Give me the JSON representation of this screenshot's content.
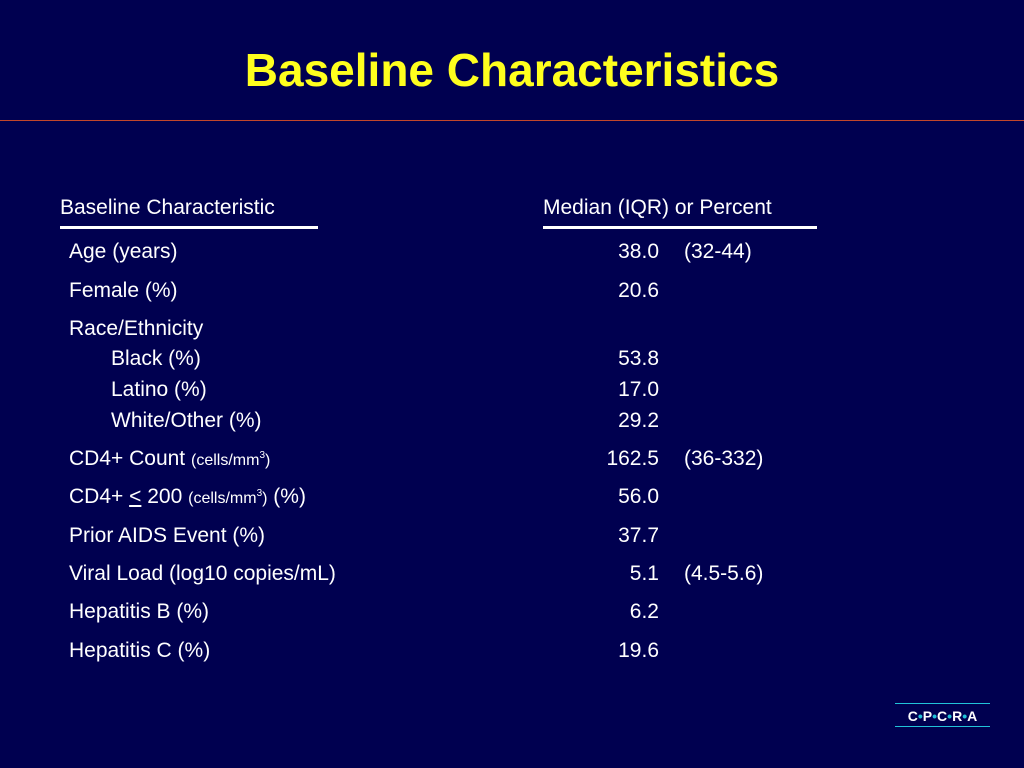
{
  "title": "Baseline Characteristics",
  "table": {
    "col_headers": [
      "Baseline Characteristic",
      "Median (IQR) or Percent"
    ],
    "rows": {
      "age": {
        "label": "Age (years)",
        "value": "38.0",
        "iqr": "(32-44)"
      },
      "female": {
        "label": "Female (%)",
        "value": "20.6",
        "iqr": ""
      },
      "race": {
        "label": "Race/Ethnicity"
      },
      "black": {
        "label": "Black (%)",
        "value": "53.8"
      },
      "latino": {
        "label": "Latino (%)",
        "value": "17.0"
      },
      "white": {
        "label": "White/Other (%)",
        "value": "29.2"
      },
      "cd4_count": {
        "label": "CD4+ Count",
        "unit_prefix": "(cells/mm",
        "unit_sup": "3",
        "unit_suffix": ")",
        "value": "162.5",
        "iqr": "(36-332)"
      },
      "cd4_le200": {
        "label_prefix": "CD4+",
        "lt_symbol": "<",
        "label_num": "200",
        "unit_prefix": "(cells/mm",
        "unit_sup": "3",
        "unit_suffix": ")",
        "label_suffix": "(%)",
        "value": "56.0"
      },
      "aids": {
        "label": "Prior AIDS Event (%)",
        "value": "37.7"
      },
      "viral": {
        "label": "Viral Load (log10 copies/mL)",
        "value": "5.1",
        "iqr": "(4.5-5.6)"
      },
      "hepb": {
        "label": "Hepatitis B (%)",
        "value": "6.2"
      },
      "hepc": {
        "label": "Hepatitis C (%)",
        "value": "19.6"
      }
    }
  },
  "logo": {
    "letters": [
      "C",
      "P",
      "C",
      "R",
      "A"
    ],
    "separator": "•"
  },
  "colors": {
    "background": "#000050",
    "title": "#ffff1e",
    "rule": "#c2462a",
    "logo_accent": "#21c2d8"
  }
}
